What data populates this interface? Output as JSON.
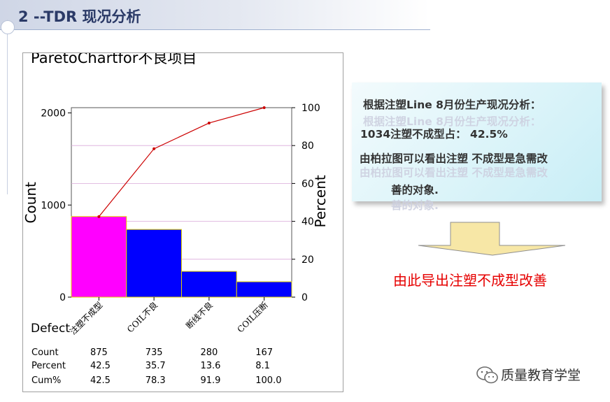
{
  "slide": {
    "title": "2 --TDR 现况分析"
  },
  "chart_data": {
    "type": "pareto",
    "title": "ParetoChartfor不良项目",
    "categories": [
      "注塑不成型",
      "COIL不良",
      "断线不良",
      "COIL压断"
    ],
    "counts": [
      875,
      735,
      280,
      167
    ],
    "percent": [
      42.5,
      35.7,
      13.6,
      8.1
    ],
    "cum_percent": [
      42.5,
      78.3,
      91.9,
      100.0
    ],
    "ylabel_left": "Count",
    "ylabel_right": "Percent",
    "left_ticks": [
      "0",
      "1000",
      "2000"
    ],
    "right_ticks": [
      "0",
      "20",
      "40",
      "60",
      "80",
      "100"
    ],
    "ylim_left": [
      0,
      2057
    ],
    "ylim_right": [
      0,
      100
    ],
    "bar_colors": [
      "#ff00ff",
      "#0000ff",
      "#0000ff",
      "#0000ff"
    ],
    "line_color": "#cc0000",
    "table": {
      "header_label": "Defect",
      "row_labels": [
        "Count",
        "Percent",
        "Cum%"
      ],
      "rows": [
        [
          "875",
          "735",
          "280",
          "167"
        ],
        [
          "42.5",
          "35.7",
          "13.6",
          "8.1"
        ],
        [
          "42.5",
          "78.3",
          "91.9",
          "100.0"
        ]
      ]
    }
  },
  "analysis": {
    "line1": "根据注塑Line 8月份生产现况分析：",
    "line2": "1034注塑不成型占：  42.5%",
    "line3": "由柏拉图可以看出注塑 不成型是急需改",
    "line4": "善的对象."
  },
  "conclusion": "由此导出注塑不成型改善",
  "watermark": {
    "text": "质量教育学堂",
    "icon": "wechat-icon"
  },
  "colors": {
    "title_text": "#2b3a67",
    "conclusion_text": "#e60000",
    "arrow_fill": "#f7e7a6"
  }
}
